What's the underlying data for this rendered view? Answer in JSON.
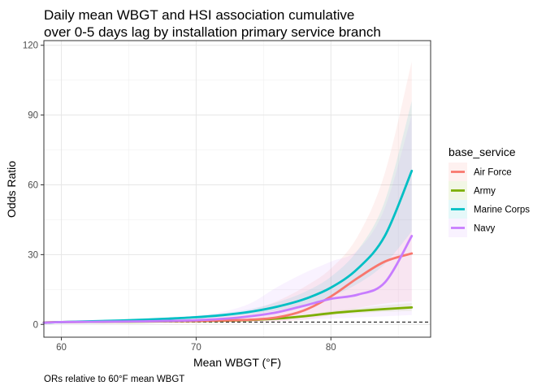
{
  "chart_data": {
    "type": "line",
    "title_lines": [
      "Daily mean WBGT and HSI association cumulative",
      "over 0-5 days lag by installation primary service branch"
    ],
    "xlabel": "Mean WBGT (°F)",
    "ylabel": "Odds Ratio",
    "caption": "ORs relative to 60°F mean WBGT",
    "xlim": [
      58.7,
      87.4
    ],
    "ylim": [
      -5.5,
      122
    ],
    "x_ticks": [
      60,
      70,
      80
    ],
    "x_tick_labels": [
      "60",
      "70",
      "80"
    ],
    "y_ticks": [
      0,
      30,
      60,
      90,
      120
    ],
    "y_tick_labels": [
      "0",
      "30",
      "60",
      "90",
      "120"
    ],
    "reference_line": {
      "y": 1,
      "style": "dashed"
    },
    "grid": true,
    "legend": {
      "title": "base_service",
      "position": "right",
      "entries": [
        "Air Force",
        "Army",
        "Marine Corps",
        "Navy"
      ]
    },
    "x": [
      58.7,
      60,
      62,
      64,
      66,
      68,
      70,
      72,
      74,
      76,
      78,
      80,
      82,
      84,
      86
    ],
    "series": [
      {
        "name": "Air Force",
        "color": "#F8766D",
        "values": [
          0.8,
          1.0,
          1.1,
          1.2,
          1.3,
          1.4,
          1.5,
          1.7,
          2.0,
          3.0,
          6.0,
          12.0,
          20.0,
          27.0,
          30.5
        ],
        "lower": [
          0.6,
          0.8,
          0.8,
          0.8,
          0.8,
          0.8,
          0.8,
          0.8,
          0.9,
          1.2,
          2.0,
          4.0,
          7.0,
          9.0,
          10.0
        ],
        "upper": [
          1.1,
          1.2,
          1.4,
          1.7,
          2.0,
          2.5,
          3.0,
          4.0,
          6.0,
          10.0,
          16.0,
          24.0,
          38.0,
          65.0,
          113.0
        ]
      },
      {
        "name": "Army",
        "color": "#7CAE00",
        "values": [
          0.8,
          1.0,
          1.05,
          1.1,
          1.2,
          1.3,
          1.4,
          1.6,
          1.9,
          2.5,
          3.5,
          4.8,
          5.8,
          6.6,
          7.3
        ],
        "lower": [
          0.7,
          0.9,
          0.95,
          1.0,
          1.1,
          1.2,
          1.3,
          1.45,
          1.7,
          2.2,
          3.0,
          4.0,
          4.8,
          5.4,
          5.8
        ],
        "upper": [
          0.9,
          1.1,
          1.15,
          1.2,
          1.3,
          1.4,
          1.5,
          1.75,
          2.1,
          2.8,
          4.0,
          5.7,
          7.0,
          8.2,
          9.2
        ]
      },
      {
        "name": "Marine Corps",
        "color": "#00BFC4",
        "values": [
          0.7,
          1.0,
          1.3,
          1.6,
          2.0,
          2.5,
          3.1,
          4.0,
          5.4,
          7.6,
          10.8,
          15.8,
          24.0,
          38.0,
          66.0
        ],
        "lower": [
          0.6,
          0.85,
          1.1,
          1.35,
          1.7,
          2.1,
          2.6,
          3.3,
          4.4,
          6.0,
          8.4,
          12.0,
          17.5,
          26.0,
          40.0
        ],
        "upper": [
          0.8,
          1.15,
          1.5,
          1.85,
          2.3,
          2.9,
          3.6,
          4.8,
          6.6,
          9.5,
          13.8,
          20.5,
          32.0,
          53.0,
          96.0
        ]
      },
      {
        "name": "Navy",
        "color": "#C77CFF",
        "values": [
          0.7,
          1.0,
          1.1,
          1.2,
          1.3,
          1.5,
          1.8,
          2.4,
          3.5,
          5.2,
          8.0,
          11.0,
          12.8,
          18.0,
          38.0
        ],
        "lower": [
          0.5,
          0.7,
          0.7,
          0.7,
          0.7,
          0.7,
          0.8,
          1.0,
          1.2,
          1.5,
          2.0,
          2.5,
          3.0,
          3.5,
          4.0
        ],
        "upper": [
          1.0,
          1.4,
          1.6,
          1.9,
          2.3,
          2.9,
          3.8,
          5.5,
          9.0,
          16.0,
          22.0,
          27.0,
          32.0,
          50.0,
          90.0
        ]
      }
    ]
  }
}
